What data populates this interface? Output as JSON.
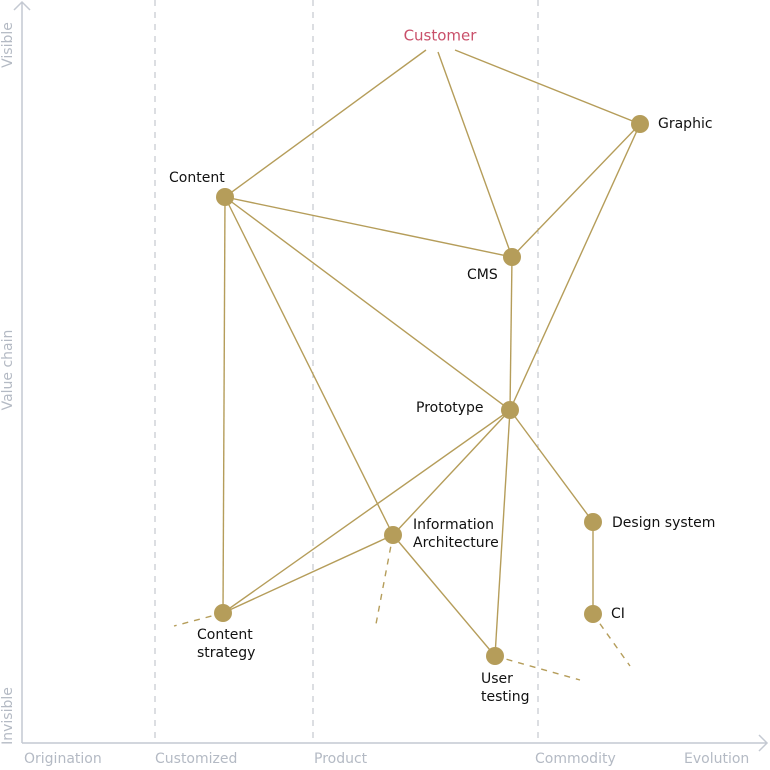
{
  "axes": {
    "y_top": "Visible",
    "y_middle": "Value chain",
    "y_bottom": "Invisible",
    "x": [
      "Origination",
      "Customized",
      "Product",
      "Commodity"
    ],
    "x_end": "Evolution"
  },
  "nodes": {
    "customer": [
      "Customer"
    ],
    "graphic": [
      "Graphic"
    ],
    "content": [
      "Content"
    ],
    "cms": [
      "CMS"
    ],
    "prototype": [
      "Prototype"
    ],
    "design_system": [
      "Design system"
    ],
    "information_architecture": [
      "Information",
      "Architecture"
    ],
    "content_strategy": [
      "Content",
      "strategy"
    ],
    "ci": [
      "CI"
    ],
    "user_testing": [
      "User",
      "testing"
    ]
  }
}
